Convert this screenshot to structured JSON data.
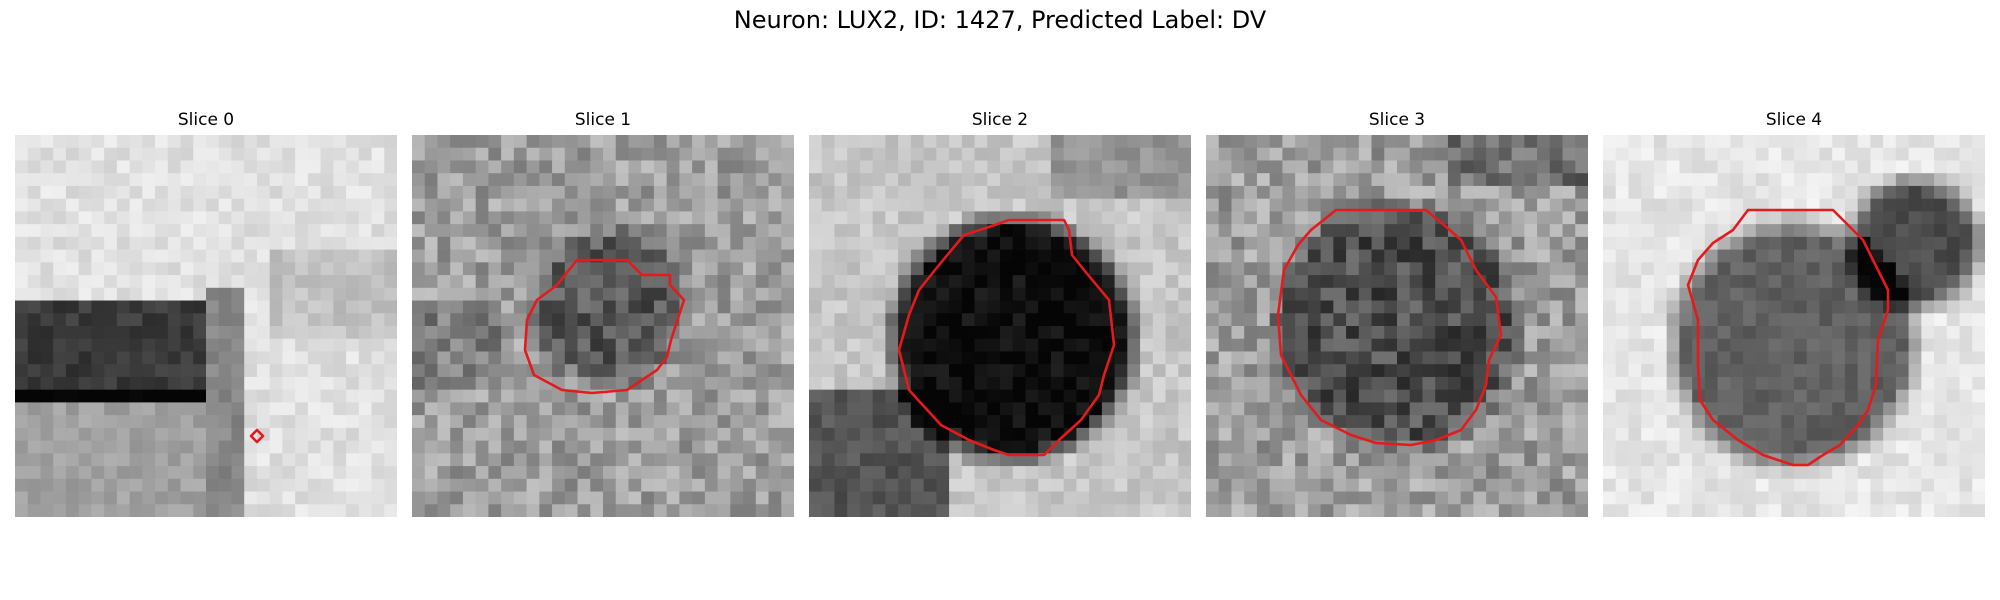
{
  "figure": {
    "title": "Neuron: LUX2, ID: 1427, Predicted Label: DV",
    "outline_color": "#e41a1c"
  },
  "panels": [
    {
      "title": "Slice 0"
    },
    {
      "title": "Slice 1"
    },
    {
      "title": "Slice 2"
    },
    {
      "title": "Slice 3"
    },
    {
      "title": "Slice 4"
    }
  ]
}
